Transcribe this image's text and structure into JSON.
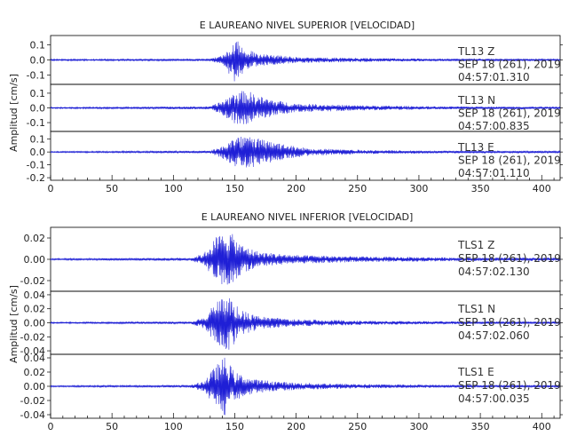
{
  "chart_data": [
    {
      "type": "line",
      "title": "E LAUREANO NIVEL SUPERIOR [VELOCIDAD]",
      "ylabel": "Amplitud [cm/s]",
      "xlim": [
        0,
        415
      ],
      "x_ticks": [
        "0",
        "50",
        "100",
        "150",
        "200",
        "250",
        "300",
        "350",
        "400"
      ],
      "panels": [
        {
          "station": "TL13",
          "component": "Z",
          "date": "SEP 18 (261), 2019",
          "time": "04:57:01.310",
          "ylim": [
            -0.16,
            0.16
          ],
          "y_ticks": [
            0.1,
            0.0,
            -0.1
          ],
          "y_tick_labels": [
            "0.1",
            "0.0",
            "-0.1"
          ],
          "envelope": [
            [
              0,
              0.005
            ],
            [
              130,
              0.008
            ],
            [
              140,
              0.03
            ],
            [
              150,
              0.15
            ],
            [
              158,
              0.08
            ],
            [
              170,
              0.04
            ],
            [
              200,
              0.02
            ],
            [
              260,
              0.012
            ],
            [
              320,
              0.008
            ],
            [
              415,
              0.006
            ]
          ],
          "seed": 1
        },
        {
          "station": "TL13",
          "component": "N",
          "date": "SEP 18 (261), 2019",
          "time": "04:57:00.835",
          "ylim": [
            -0.16,
            0.16
          ],
          "y_ticks": [
            0.1,
            0.0,
            -0.1
          ],
          "y_tick_labels": [
            "0.1",
            "0.0",
            "-0.1"
          ],
          "envelope": [
            [
              0,
              0.005
            ],
            [
              130,
              0.01
            ],
            [
              140,
              0.05
            ],
            [
              150,
              0.11
            ],
            [
              160,
              0.12
            ],
            [
              170,
              0.08
            ],
            [
              185,
              0.05
            ],
            [
              200,
              0.03
            ],
            [
              250,
              0.018
            ],
            [
              320,
              0.01
            ],
            [
              415,
              0.008
            ]
          ],
          "seed": 2
        },
        {
          "station": "TL13",
          "component": "E",
          "date": "SEP 18 (261), 2019",
          "time": "04:57:01.110",
          "ylim": [
            -0.22,
            0.16
          ],
          "y_ticks": [
            0.1,
            0.0,
            -0.1,
            -0.2
          ],
          "y_tick_labels": [
            "0.1",
            "0.0",
            "-0.1",
            "-0.2"
          ],
          "envelope": [
            [
              0,
              0.005
            ],
            [
              130,
              0.01
            ],
            [
              140,
              0.05
            ],
            [
              150,
              0.11
            ],
            [
              160,
              0.13
            ],
            [
              175,
              0.09
            ],
            [
              185,
              0.07
            ],
            [
              195,
              0.05
            ],
            [
              210,
              0.03
            ],
            [
              260,
              0.015
            ],
            [
              330,
              0.01
            ],
            [
              415,
              0.008
            ]
          ],
          "seed": 3
        }
      ]
    },
    {
      "type": "line",
      "title": "E LAUREANO NIVEL INFERIOR [VELOCIDAD]",
      "ylabel": "Amplitud [cm/s]",
      "xlim": [
        0,
        415
      ],
      "x_ticks": [
        "0",
        "50",
        "100",
        "150",
        "200",
        "250",
        "300",
        "350",
        "400"
      ],
      "panels": [
        {
          "station": "TLS1",
          "component": "Z",
          "date": "SEP 18 (261), 2019",
          "time": "04:57:02.130",
          "ylim": [
            -0.03,
            0.03
          ],
          "y_ticks": [
            0.02,
            0.0,
            -0.02
          ],
          "y_tick_labels": [
            "0.02",
            "0.00",
            "-0.02"
          ],
          "envelope": [
            [
              0,
              0.0008
            ],
            [
              115,
              0.0015
            ],
            [
              125,
              0.006
            ],
            [
              135,
              0.022
            ],
            [
              145,
              0.028
            ],
            [
              155,
              0.014
            ],
            [
              170,
              0.007
            ],
            [
              200,
              0.004
            ],
            [
              260,
              0.0025
            ],
            [
              330,
              0.0018
            ],
            [
              415,
              0.0015
            ]
          ],
          "seed": 4
        },
        {
          "station": "TLS1",
          "component": "N",
          "date": "SEP 18 (261), 2019",
          "time": "04:57:02.060",
          "ylim": [
            -0.045,
            0.045
          ],
          "y_ticks": [
            0.04,
            0.02,
            0.0,
            -0.02,
            -0.04
          ],
          "y_tick_labels": [
            "0.04",
            "0.02",
            "0.00",
            "-0.02",
            "-0.04"
          ],
          "envelope": [
            [
              0,
              0.001
            ],
            [
              115,
              0.002
            ],
            [
              125,
              0.008
            ],
            [
              135,
              0.03
            ],
            [
              145,
              0.04
            ],
            [
              155,
              0.018
            ],
            [
              170,
              0.009
            ],
            [
              200,
              0.005
            ],
            [
              260,
              0.003
            ],
            [
              330,
              0.002
            ],
            [
              415,
              0.0018
            ]
          ],
          "seed": 5
        },
        {
          "station": "TLS1",
          "component": "E",
          "date": "SEP 18 (261), 2019",
          "time": "04:57:00.035",
          "ylim": [
            -0.045,
            0.045
          ],
          "y_ticks": [
            0.04,
            0.02,
            0.0,
            -0.02,
            -0.04
          ],
          "y_tick_labels": [
            "0.04",
            "0.02",
            "0.00",
            "-0.02",
            "-0.04"
          ],
          "envelope": [
            [
              0,
              0.001
            ],
            [
              115,
              0.002
            ],
            [
              125,
              0.008
            ],
            [
              135,
              0.03
            ],
            [
              142,
              0.042
            ],
            [
              150,
              0.02
            ],
            [
              165,
              0.01
            ],
            [
              200,
              0.005
            ],
            [
              260,
              0.003
            ],
            [
              330,
              0.002
            ],
            [
              415,
              0.0018
            ]
          ],
          "seed": 6
        }
      ]
    }
  ]
}
